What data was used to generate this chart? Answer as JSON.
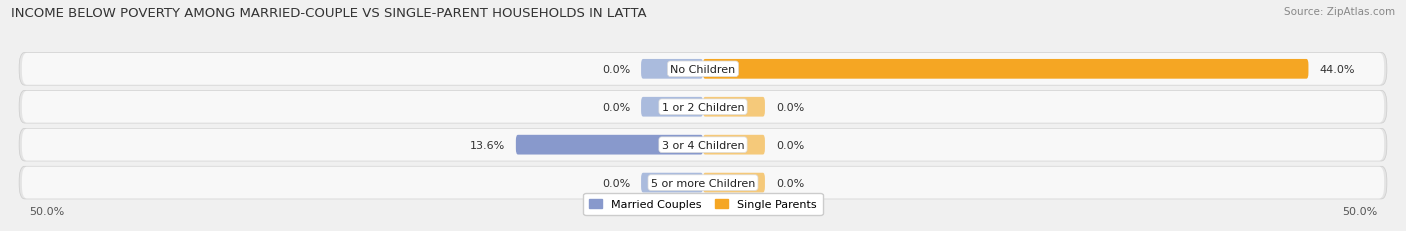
{
  "title": "INCOME BELOW POVERTY AMONG MARRIED-COUPLE VS SINGLE-PARENT HOUSEHOLDS IN LATTA",
  "source": "Source: ZipAtlas.com",
  "categories": [
    "No Children",
    "1 or 2 Children",
    "3 or 4 Children",
    "5 or more Children"
  ],
  "married_values": [
    0.0,
    0.0,
    13.6,
    0.0
  ],
  "single_values": [
    44.0,
    0.0,
    0.0,
    0.0
  ],
  "x_min": -50.0,
  "x_max": 50.0,
  "married_color": "#8899CC",
  "single_color": "#F5A623",
  "married_color_zero": "#AABBDD",
  "single_color_zero": "#F5C97A",
  "married_label": "Married Couples",
  "single_label": "Single Parents",
  "bg_color": "#f0f0f0",
  "row_bg_color": "#e4e4e4",
  "row_bg_inner": "#f8f8f8",
  "title_fontsize": 9.5,
  "source_fontsize": 7.5,
  "axis_label_fontsize": 8,
  "bar_label_fontsize": 8,
  "cat_label_fontsize": 8,
  "min_bar_width": 4.5,
  "bar_height": 0.52
}
